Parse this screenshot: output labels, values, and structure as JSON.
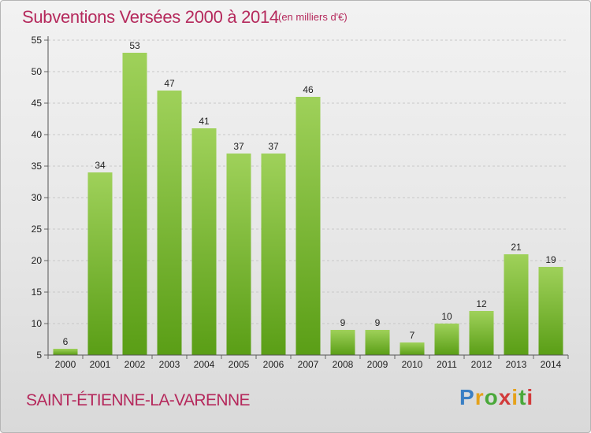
{
  "header": {
    "title": "Subventions Versées 2000 à 2014",
    "subtitle": "(en milliers d'€)"
  },
  "commune": "SAINT-ÉTIENNE-LA-VARENNE",
  "logo": {
    "text": "Proxiti",
    "colors": [
      "#3a7fc4",
      "#e5a21b",
      "#4aa83a",
      "#d23b3b"
    ]
  },
  "colors": {
    "bar_top": "#9fd15a",
    "bar_bottom": "#5a9e16",
    "grid": "#c8c8c8",
    "title": "#b5295c"
  },
  "chart_data": {
    "type": "bar",
    "categories": [
      "2000",
      "2001",
      "2002",
      "2003",
      "2004",
      "2005",
      "2006",
      "2007",
      "2008",
      "2009",
      "2010",
      "2011",
      "2012",
      "2013",
      "2014"
    ],
    "values": [
      6,
      34,
      53,
      47,
      41,
      37,
      37,
      46,
      9,
      9,
      7,
      10,
      12,
      21,
      19
    ],
    "ylim": [
      5,
      55
    ],
    "yticks": [
      5,
      10,
      15,
      20,
      25,
      30,
      35,
      40,
      45,
      50,
      55
    ],
    "grid": true,
    "grid_style": "dashed-horizontal",
    "legend": "none"
  }
}
